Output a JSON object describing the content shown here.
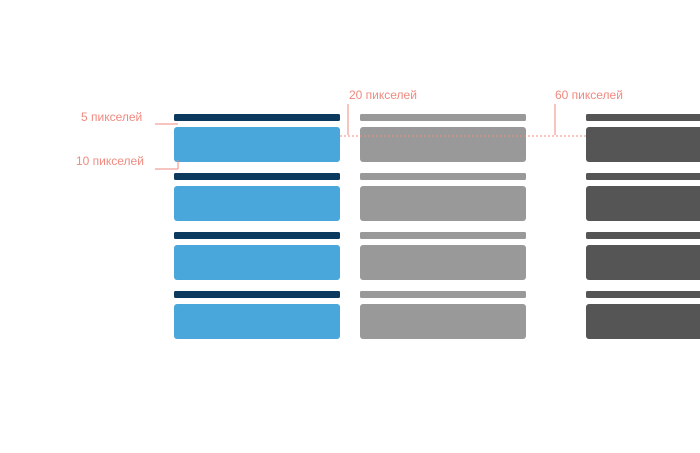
{
  "annotations": {
    "px5_label": "5 пикселей",
    "px10_label": "10 пикселей",
    "px20_label": "20 пикселей",
    "px60_label": "60 пикселей"
  },
  "colors": {
    "annotation": "#f08a80",
    "column1_thin": "#0c3a5f",
    "column1_block": "#4aa7db",
    "column2_thin": "#999999",
    "column2_block": "#999999",
    "column3_thin": "#555555",
    "column3_block": "#555555"
  },
  "rows_per_column": 4
}
